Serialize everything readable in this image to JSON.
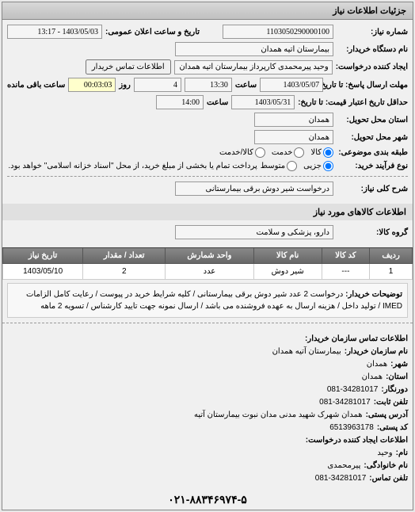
{
  "panel": {
    "title": "جزئیات اطلاعات نیاز"
  },
  "form": {
    "req_number_label": "شماره نیاز:",
    "req_number": "1103050290000100",
    "public_date_label": "تاریخ و ساعت اعلان عمومی:",
    "public_date": "1403/05/03 - 13:17",
    "buyer_org_label": "نام دستگاه خریدار:",
    "buyer_org": "بیمارستان آتیه همدان",
    "creator_label": "ایجاد کننده درخواست:",
    "creator": "وحید پیرمحمدی کارپرداز بیمارستان آتیه همدان",
    "contact_btn": "اطلاعات تماس خریدار",
    "deadline_label": "مهلت ارسال پاسخ: تا تاریخ:",
    "deadline_date": "1403/05/07",
    "time_label": "ساعت",
    "deadline_time": "13:30",
    "day_label": "روز",
    "days_remaining": "4",
    "time_remaining_label": "ساعت باقی مانده",
    "time_remaining": "00:03:03",
    "validity_label": "حداقل تاریخ اعتبار قیمت: تا تاریخ:",
    "validity_date": "1403/05/31",
    "validity_time": "14:00",
    "province_label": "استان محل تحویل:",
    "province": "همدان",
    "city_label": "شهر محل تحویل:",
    "city": "همدان",
    "category_label": "طبقه بندی موضوعی:",
    "goods_opt": "کالا",
    "service_opt": "خدمت",
    "goods_service_opt": "کالا/خدمت",
    "process_label": "نوع فرآیند خرید:",
    "small_opt": "جزیی",
    "medium_opt": "متوسط",
    "payment_note": "پرداخت تمام یا بخشی از مبلغ خرید، از محل \"اسناد خزانه اسلامی\" خواهد بود."
  },
  "description": {
    "title_label": "شرح کلی نیاز:",
    "title": "درخواست شیر دوش برقی بیمارستانی"
  },
  "items_section": {
    "title": "اطلاعات کالاهای مورد نیاز",
    "group_label": "گروه کالا:",
    "group": "دارو، پزشکی و سلامت"
  },
  "table": {
    "headers": {
      "row": "ردیف",
      "code": "کد کالا",
      "name": "نام کالا",
      "unit": "واحد شمارش",
      "qty": "تعداد / مقدار",
      "date": "تاریخ نیاز"
    },
    "rows": [
      {
        "row": "1",
        "code": "---",
        "name": "شیر دوش",
        "unit": "عدد",
        "qty": "2",
        "date": "1403/05/10"
      }
    ]
  },
  "buyer_desc": {
    "label": "توضیحات خریدار:",
    "text": "درخواست 2 عدد شیر دوش برقی بیمارستانی / کلیه شرایط خرید در پیوست / رعایت کامل الزامات IMED / تولید داخل / هزینه ارسال به عهده فروشنده می باشد / ارسال نمونه جهت تایید کارشناس / تسویه 2 ماهه"
  },
  "contact": {
    "section_title": "اطلاعات تماس سازمان خریدار:",
    "org_label": "نام سازمان خریدار:",
    "org": "بیمارستان آتیه همدان",
    "city_label": "شهر:",
    "city": "همدان",
    "province_label": "استان:",
    "province": "همدان",
    "fax_label": "دورنگار:",
    "fax": "081-34281017",
    "phone_label": "تلفن ثابت:",
    "phone": "081-34281017",
    "address_label": "آدرس پستی:",
    "address": "همدان شهرک شهید مدنی مدان نبوت بیمارستان آتیه",
    "postal_label": "کد پستی:",
    "postal": "6513963178",
    "creator_section": "اطلاعات ایجاد کننده درخواست:",
    "name_label": "نام:",
    "name": "وحید",
    "surname_label": "نام خانوادگی:",
    "surname": "پیرمحمدی",
    "contact_phone_label": "تلفن تماس:",
    "contact_phone": "081-34281017"
  },
  "footer_phone": "۰۲۱-۸۸۳۴۶۹۷۴-۵"
}
